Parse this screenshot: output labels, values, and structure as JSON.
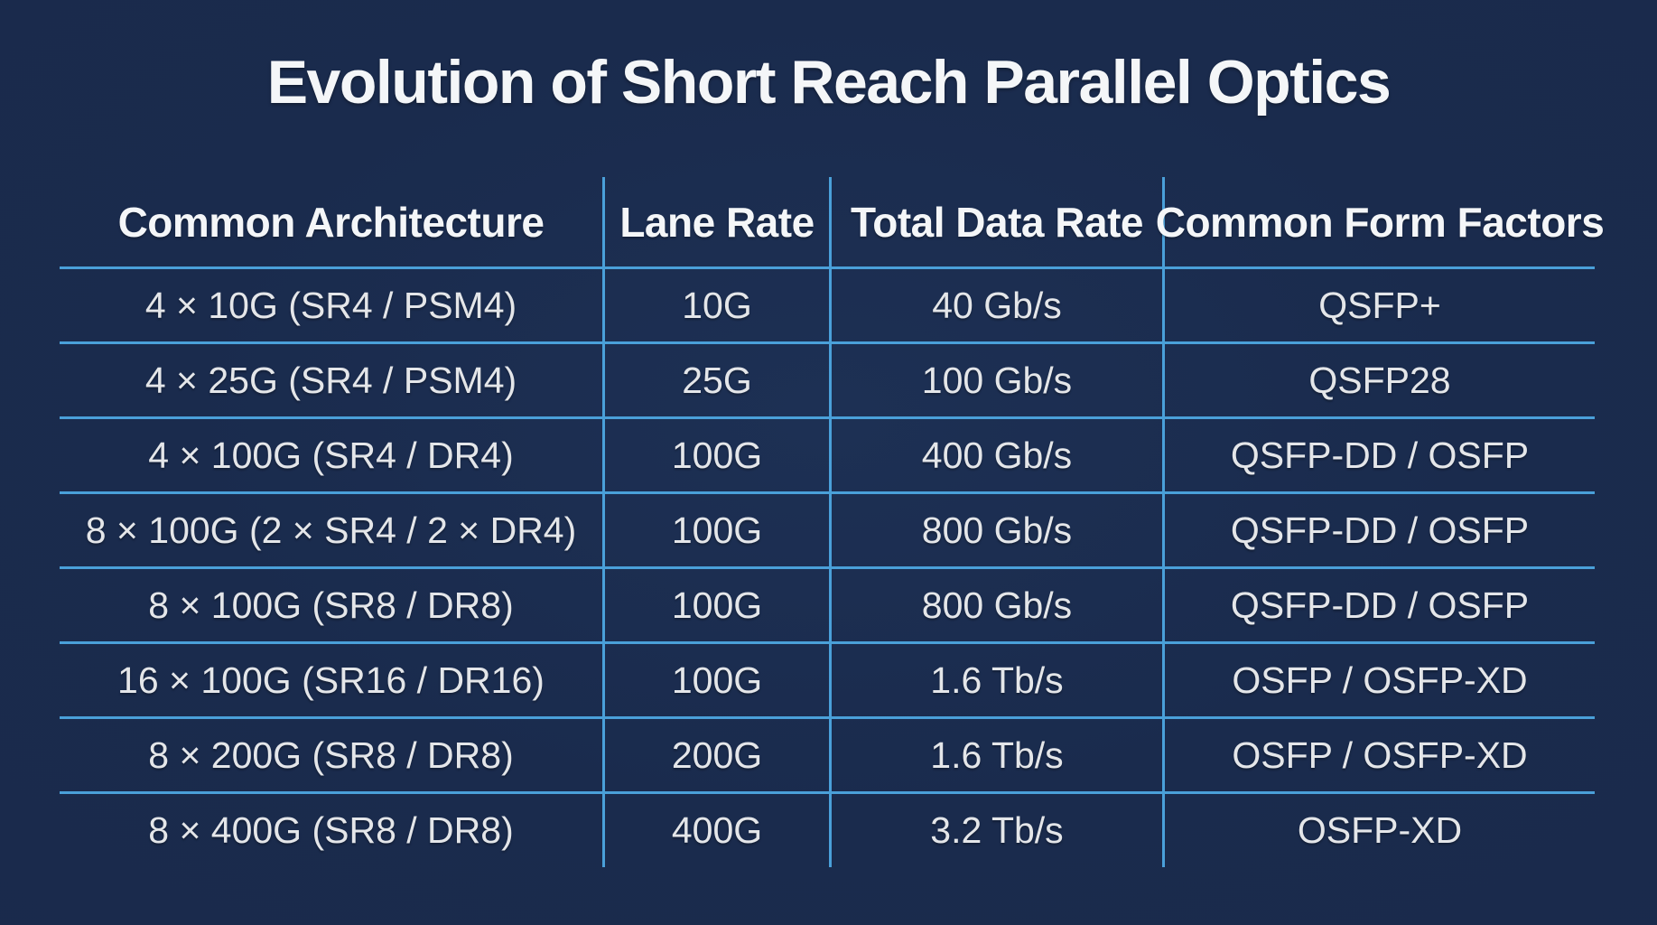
{
  "chart_data": {
    "type": "table",
    "title": "Evolution of Short Reach Parallel Optics",
    "columns": [
      "Common Architecture",
      "Lane Rate",
      "Total Data Rate",
      "Common Form Factors"
    ],
    "rows": [
      [
        "4 × 10G (SR4 / PSM4)",
        "10G",
        "40 Gb/s",
        "QSFP+"
      ],
      [
        "4 × 25G (SR4 / PSM4)",
        "25G",
        "100 Gb/s",
        "QSFP28"
      ],
      [
        "4 × 100G (SR4 / DR4)",
        "100G",
        "400 Gb/s",
        "QSFP-DD / OSFP"
      ],
      [
        "8 × 100G (2 × SR4 / 2 × DR4)",
        "100G",
        "800 Gb/s",
        "QSFP-DD / OSFP"
      ],
      [
        "8 × 100G (SR8 / DR8)",
        "100G",
        "800 Gb/s",
        "QSFP-DD / OSFP"
      ],
      [
        "16 × 100G (SR16 / DR16)",
        "100G",
        "1.6 Tb/s",
        "OSFP / OSFP-XD"
      ],
      [
        "8 × 200G (SR8 / DR8)",
        "200G",
        "1.6 Tb/s",
        "OSFP / OSFP-XD"
      ],
      [
        "8 × 400G (SR8 / DR8)",
        "400G",
        "3.2 Tb/s",
        "OSFP-XD"
      ]
    ],
    "layout": {
      "grid": "horizontal row dividers and vertical column dividers, no outer border",
      "legend": "none",
      "title_position": "top-center"
    }
  },
  "colors": {
    "background": "#1a2b4d",
    "divider": "#4aa0d9",
    "title_text": "#f4f6f8",
    "header_text": "#f4f6f8",
    "cell_text": "#e4e6e9"
  }
}
